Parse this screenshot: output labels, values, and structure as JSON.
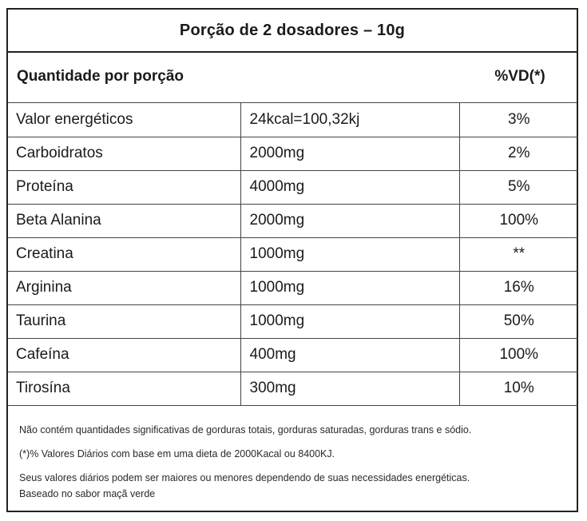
{
  "title": "Porção de 2 dosadores – 10g",
  "header": {
    "left": "Quantidade por porção",
    "right": "%VD(*)"
  },
  "rows": [
    {
      "name": "Valor energéticos",
      "amount": "24kcal=100,32kj",
      "vd": "3%"
    },
    {
      "name": "Carboidratos",
      "amount": "2000mg",
      "vd": "2%"
    },
    {
      "name": "Proteína",
      "amount": "4000mg",
      "vd": "5%"
    },
    {
      "name": "Beta Alanina",
      "amount": "2000mg",
      "vd": "100%"
    },
    {
      "name": "Creatina",
      "amount": "1000mg",
      "vd": "**"
    },
    {
      "name": "Arginina",
      "amount": "1000mg",
      "vd": "16%"
    },
    {
      "name": "Taurina",
      "amount": "1000mg",
      "vd": "50%"
    },
    {
      "name": "Cafeína",
      "amount": "400mg",
      "vd": "100%"
    },
    {
      "name": "Tirosína",
      "amount": "300mg",
      "vd": "10%"
    }
  ],
  "footnotes": {
    "line1": "Não contém quantidades significativas de gorduras totais, gorduras saturadas, gorduras trans e sódio.",
    "line2": "(*)% Valores Diários com base em uma dieta de 2000Kacal ou 8400KJ.",
    "line3": "Seus valores diários podem ser maiores ou menores dependendo de suas necessidades energéticas.",
    "line4": "Baseado no sabor maçã verde"
  }
}
